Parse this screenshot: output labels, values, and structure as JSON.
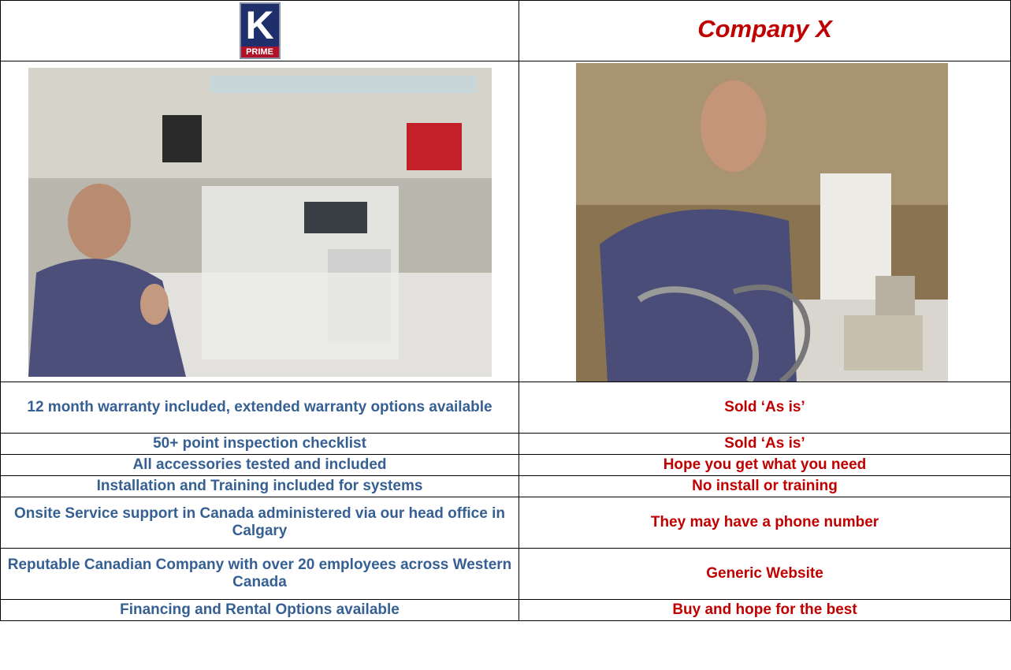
{
  "header": {
    "logo": {
      "letter": "K",
      "word": "PRIME"
    },
    "title": "Company X"
  },
  "table": {
    "rows": [
      [
        "12 month warranty included, extended warranty options available",
        "Sold ‘As is’"
      ],
      [
        "50+ point inspection checklist",
        "Sold ‘As is’"
      ],
      [
        "All accessories tested and included",
        "Hope you get what you need"
      ],
      [
        "Installation and Training included for systems",
        "No install or training"
      ],
      [
        "Onsite Service support in Canada administered via our head office in Calgary",
        "They may have a phone number"
      ],
      [
        "Reputable Canadian Company with over 20 employees across Western Canada",
        "Generic Website"
      ],
      [
        "Financing and Rental Options available",
        "Buy and hope for the best"
      ]
    ]
  }
}
